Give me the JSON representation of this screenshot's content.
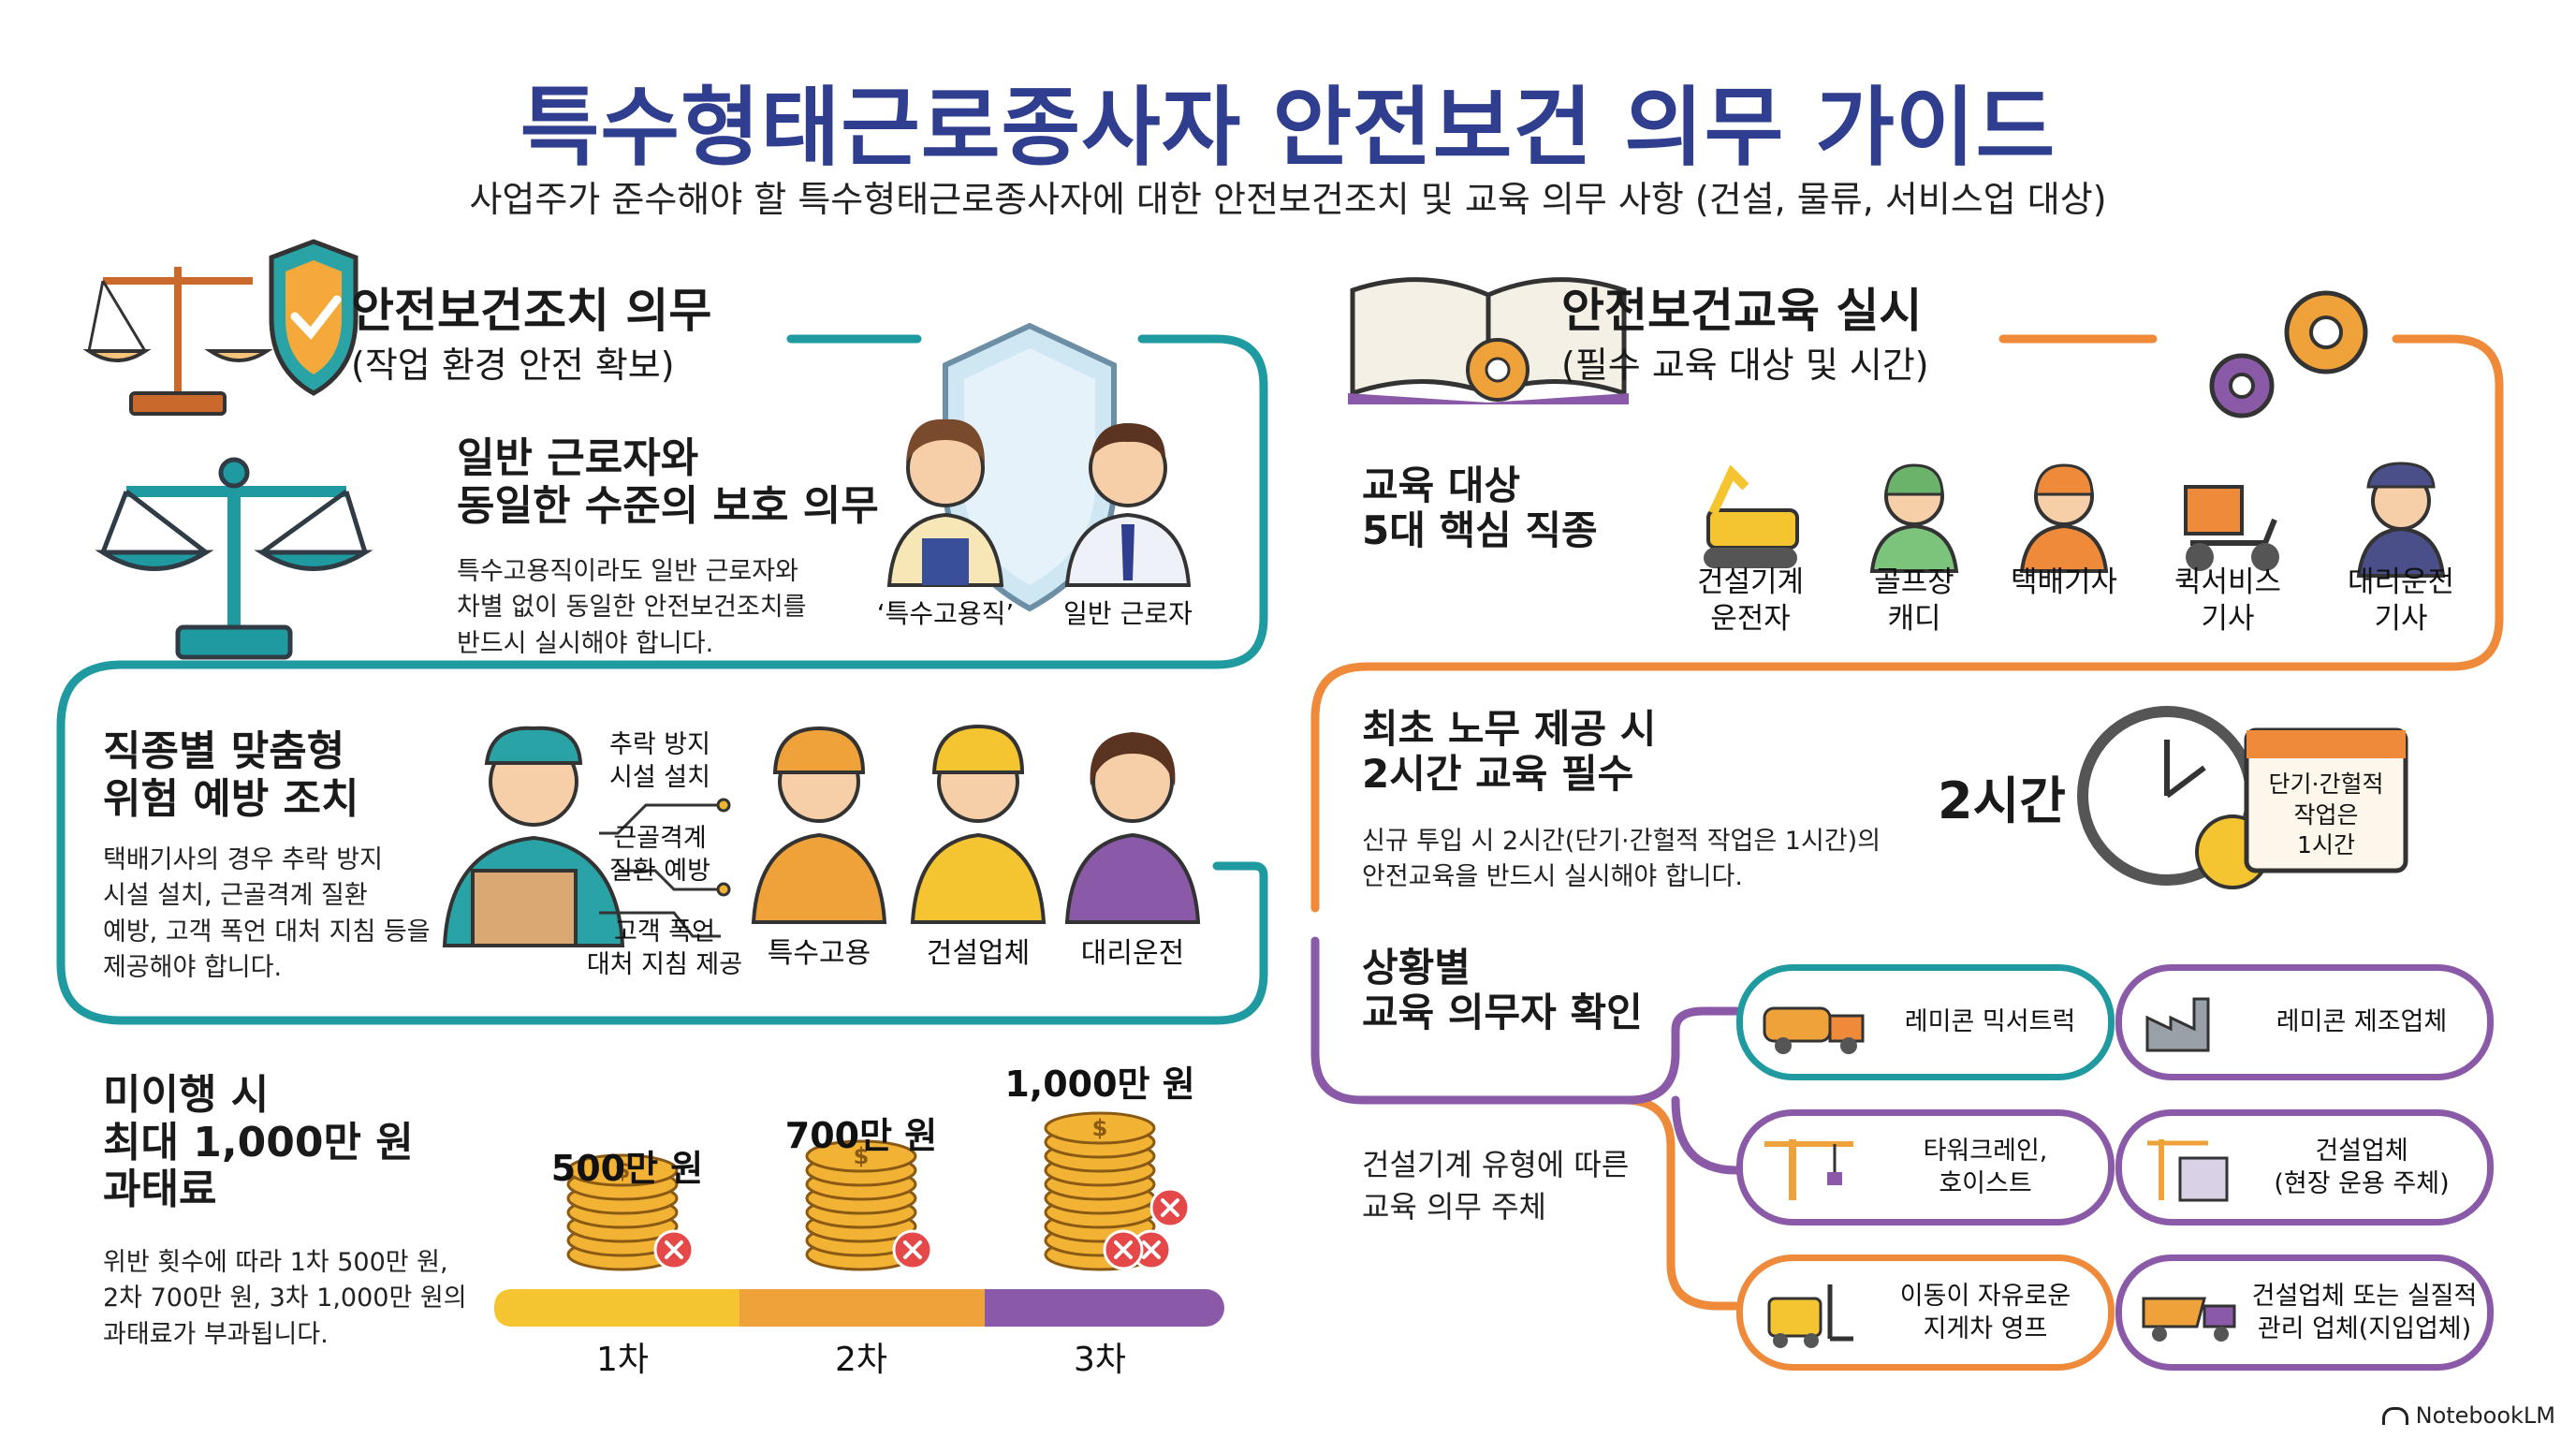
{
  "header": {
    "title": "특수형태근로종사자 안전보건 의무 가이드",
    "subtitle": "사업주가 준수해야 할 특수형태근로종사자에 대한 안전보건조치 및 교육 의무 사항 (건설, 물류, 서비스업 대상)"
  },
  "left": {
    "safety_title": "안전보건조치 의무",
    "safety_sub": "(작업 환경 안전 확보)",
    "equal": {
      "heading_line1": "일반 근로자와",
      "heading_line2": "동일한 수준의 보호 의무",
      "body_line1": "특수고용직이라도 일반 근로자와",
      "body_line2": "차별 없이 동일한 안전보건조치를",
      "body_line3": "반드시 실시해야 합니다.",
      "label_special": "‘특수고용직’",
      "label_general": "일반 근로자"
    },
    "custom": {
      "heading_line1": "직종별 맞춤형",
      "heading_line2": "위험 예방 조치",
      "body_line1": "택배기사의 경우 추락 방지",
      "body_line2": "시설 설치, 근골격계 질환",
      "body_line3": "예방, 고객 폭언 대처 지침 등을",
      "body_line4": "제공해야 합니다.",
      "callout1_line1": "추락 방지",
      "callout1_line2": "시설 설치",
      "callout2_line1": "근골격계",
      "callout2_line2": "질환 예방",
      "callout3_line1": "고객 폭언",
      "callout3_line2": "대처 지침 제공",
      "workers": [
        "특수고용",
        "건설업체",
        "대리운전"
      ]
    },
    "fine": {
      "heading_line1": "미이행 시",
      "heading_line2": "최대 1,000만 원",
      "heading_line3": "과태료",
      "body_line1": "위반 횟수에 따라 1차 500만 원,",
      "body_line2": "2차 700만 원, 3차 1,000만 원의",
      "body_line3": "과태료가 부과됩니다.",
      "tiers": [
        {
          "amount": "500만 원",
          "label": "1차",
          "value": 500
        },
        {
          "amount": "700만 원",
          "label": "2차",
          "value": 700
        },
        {
          "amount": "1,000만 원",
          "label": "3차",
          "value": 1000
        }
      ]
    }
  },
  "right": {
    "edu_title": "안전보건교육 실시",
    "edu_sub": "(필수 교육 대상 및 시간)",
    "targets": {
      "heading_line1": "교육 대상",
      "heading_line2": "5대 핵심 직종",
      "jobs": [
        {
          "line1": "건설기계",
          "line2": "운전자",
          "icon": "excavator-icon"
        },
        {
          "line1": "골프장",
          "line2": "캐디",
          "icon": "golf-caddy-icon"
        },
        {
          "line1": "택배기사",
          "line2": "",
          "icon": "courier-icon"
        },
        {
          "line1": "퀵서비스",
          "line2": "기사",
          "icon": "scooter-icon"
        },
        {
          "line1": "대리운전",
          "line2": "기사",
          "icon": "driver-icon"
        }
      ]
    },
    "first": {
      "heading_line1": "최초 노무 제공 시",
      "heading_line2": "2시간 교육 필수",
      "body_line1": "신규 투입 시 2시간(단기·간헐적 작업은 1시간)의",
      "body_line2": "안전교육을 반드시 실시해야 합니다.",
      "hours": "2시간",
      "cal_line1": "단기·간헐적",
      "cal_line2": "작업은",
      "cal_line3": "1시간"
    },
    "situational": {
      "heading_line1": "상황별",
      "heading_line2": "교육 의무자 확인",
      "sub_line1": "건설기계 유형에 따른",
      "sub_line2": "교육 의무 주체",
      "pairs": [
        {
          "left_line1": "레미콘 믹서트럭",
          "left_line2": "",
          "right_line1": "레미콘 제조업체",
          "right_line2": ""
        },
        {
          "left_line1": "타워크레인,",
          "left_line2": "호이스트",
          "right_line1": "건설업체",
          "right_line2": "(현장 운용 주체)"
        },
        {
          "left_line1": "이동이 자유로운",
          "left_line2": "지게차 영프",
          "right_line1": "건설업체 또는 실질적",
          "right_line2": "관리 업체(지입업체)"
        }
      ]
    }
  },
  "footer": {
    "brand": "NotebookLM"
  },
  "colors": {
    "teal": "#1f9aa0",
    "orange": "#ee8a3a",
    "purple": "#8a5aa8",
    "navy": "#2f3e8f",
    "gold": "#f2b233"
  }
}
